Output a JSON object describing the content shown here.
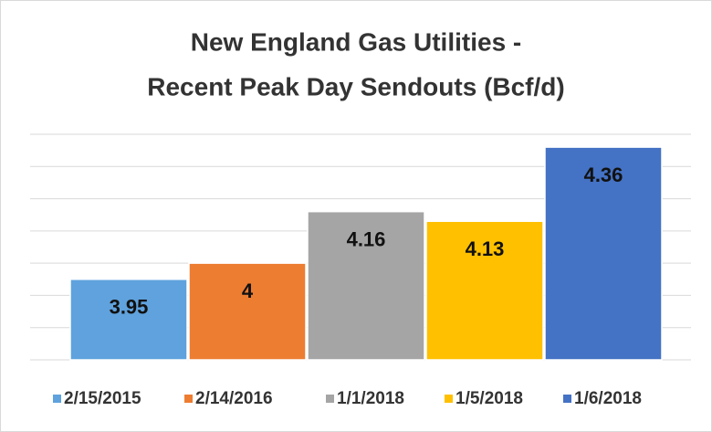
{
  "chart_data": {
    "type": "bar",
    "title": [
      "New England Gas Utilities -",
      "Recent Peak Day Sendouts (Bcf/d)"
    ],
    "categories": [
      "2/15/2015",
      "2/14/2016",
      "1/1/2018",
      "1/5/2018",
      "1/6/2018"
    ],
    "values": [
      3.95,
      4,
      4.16,
      4.13,
      4.36
    ],
    "colors": [
      "#5fa2dd",
      "#ed7d31",
      "#a5a5a5",
      "#ffc000",
      "#4472c4"
    ],
    "ylim": [
      3.7,
      4.4
    ],
    "yticks": [
      3.7,
      3.8,
      3.9,
      4.0,
      4.1,
      4.2,
      4.3,
      4.4
    ],
    "grid": true
  }
}
